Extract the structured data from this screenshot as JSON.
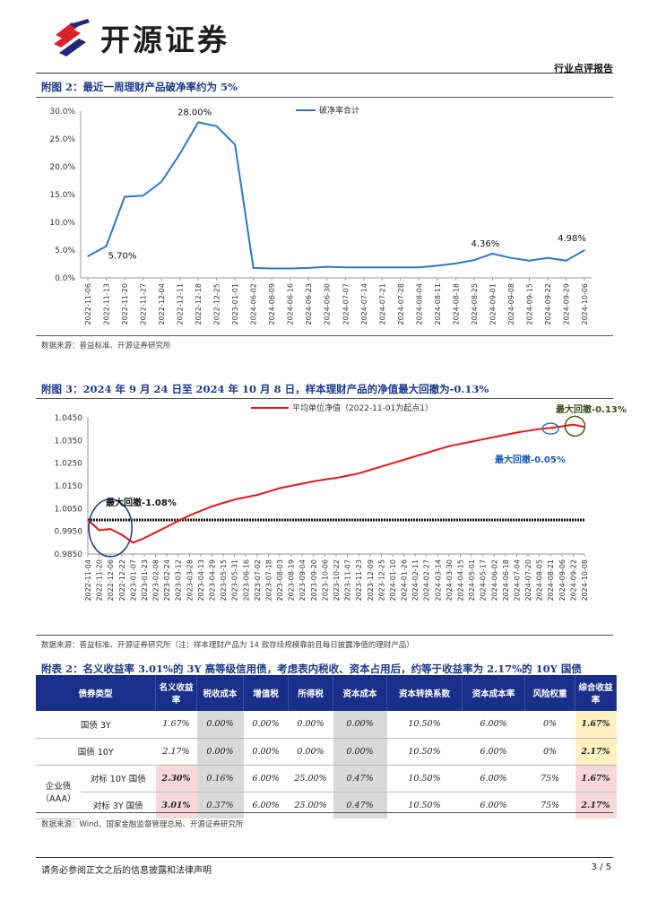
{
  "header": {
    "company_name": "开源证券",
    "report_type": "行业点评报告"
  },
  "figure2": {
    "title": "附图 2：最近一周理财产品破净率约为 5%",
    "source": "数据来源：普益标准、开源证券研究所",
    "chart_data": {
      "type": "line",
      "title": "附图 2：最近一周理财产品破净率约为 5%",
      "legend": "破净率合计",
      "ylim": [
        0,
        30
      ],
      "y_ticks": [
        "0.0%",
        "5.0%",
        "10.0%",
        "15.0%",
        "20.0%",
        "25.0%",
        "30.0%"
      ],
      "x": [
        "2022-11-06",
        "2022-11-13",
        "2022-11-20",
        "2022-11-27",
        "2022-12-04",
        "2022-12-11",
        "2022-12-18",
        "2022-12-25",
        "2023-01-01",
        "2024-06-02",
        "2024-06-09",
        "2024-06-16",
        "2024-06-23",
        "2024-06-30",
        "2024-07-07",
        "2024-07-14",
        "2024-07-21",
        "2024-07-28",
        "2024-08-04",
        "2024-08-11",
        "2024-08-18",
        "2024-08-25",
        "2024-09-01",
        "2024-09-08",
        "2024-09-15",
        "2024-09-22",
        "2024-09-29",
        "2024-10-06"
      ],
      "values": [
        3.9,
        5.7,
        14.6,
        14.8,
        17.3,
        22.3,
        28.0,
        27.3,
        24.0,
        1.8,
        1.7,
        1.7,
        1.8,
        2.0,
        1.9,
        1.9,
        1.9,
        1.9,
        1.9,
        2.2,
        2.6,
        3.2,
        4.36,
        3.6,
        3.1,
        3.6,
        3.1,
        4.98
      ],
      "annotations": [
        {
          "index": 1,
          "text": "5.70%"
        },
        {
          "index": 6,
          "text": "28.00%"
        },
        {
          "index": 22,
          "text": "4.36%"
        },
        {
          "index": 27,
          "text": "4.98%"
        }
      ]
    }
  },
  "figure3": {
    "title": "附图 3：2024 年 9 月 24 日至 2024 年 10 月 8 日，样本理财产品的净值最大回撤为-0.13%",
    "source": "数据来源：普益标准、开源证券研究所（注：样本理财产品为 14 款存续规模靠前且每日披露净值的理财产品）",
    "chart_data": {
      "type": "line",
      "legend": "平均单位净值（2022-11-01为起点1）",
      "ylim": [
        0.985,
        1.045
      ],
      "y_ticks": [
        "0.9850",
        "0.9950",
        "1.0050",
        "1.0150",
        "1.0250",
        "1.0350",
        "1.0450"
      ],
      "x_ticks": [
        "2022-11-04",
        "2022-11-20",
        "2022-12-06",
        "2022-12-22",
        "2023-01-07",
        "2023-01-23",
        "2023-02-08",
        "2023-02-24",
        "2023-03-12",
        "2023-03-28",
        "2023-04-13",
        "2023-04-29",
        "2023-05-15",
        "2023-05-31",
        "2023-06-16",
        "2023-07-02",
        "2023-07-18",
        "2023-08-03",
        "2023-08-19",
        "2023-09-04",
        "2023-09-20",
        "2023-10-06",
        "2023-10-22",
        "2023-11-07",
        "2023-11-23",
        "2023-12-09",
        "2023-12-25",
        "2024-01-10",
        "2024-01-26",
        "2024-02-11",
        "2024-02-27",
        "2024-03-14",
        "2024-03-30",
        "2024-04-15",
        "2024-05-01",
        "2024-05-17",
        "2024-06-02",
        "2024-06-18",
        "2024-07-04",
        "2024-07-20",
        "2024-08-05",
        "2024-08-21",
        "2024-09-06",
        "2024-09-22",
        "2024-10-08"
      ],
      "values": [
        1.0,
        0.9955,
        0.996,
        0.9935,
        0.99,
        0.992,
        0.9945,
        0.997,
        0.9995,
        1.002,
        1.004,
        1.006,
        1.0075,
        1.009,
        1.01,
        1.011,
        1.0125,
        1.014,
        1.015,
        1.016,
        1.017,
        1.0178,
        1.0185,
        1.0195,
        1.0205,
        1.022,
        1.0235,
        1.025,
        1.0265,
        1.028,
        1.0295,
        1.031,
        1.0325,
        1.0335,
        1.0345,
        1.0355,
        1.0365,
        1.0375,
        1.0385,
        1.0393,
        1.04,
        1.0405,
        1.0412,
        1.042,
        1.041
      ],
      "baseline": 1.0,
      "annotations": [
        {
          "text": "最大回撤-1.08%"
        },
        {
          "text": "最大回撤-0.05%"
        },
        {
          "text": "最大回撤-0.13%"
        }
      ]
    }
  },
  "table": {
    "title": "附表 2：名义收益率 3.01%的 3Y 高等级信用债，考虑表内税收、资本占用后，约等于收益率为 2.17%的 10Y 国债",
    "headers": [
      "债券类型",
      "名义收益率",
      "税收成本",
      "增值税",
      "所得税",
      "资本成本",
      "资本转换系数",
      "资本成本率",
      "风险权重",
      "综合收益率"
    ],
    "group_label": "企业债（AAA）",
    "rows": [
      {
        "label": "国债 3Y",
        "values": [
          "1.67%",
          "0.00%",
          "0.00%",
          "0.00%",
          "0.00%",
          "10.50%",
          "6.00%",
          "0%",
          "1.67%"
        ]
      },
      {
        "label": "国债 10Y",
        "values": [
          "2.17%",
          "0.00%",
          "0.00%",
          "0.00%",
          "0.00%",
          "10.50%",
          "6.00%",
          "0%",
          "2.17%"
        ]
      },
      {
        "label": "对标 10Y 国债",
        "values": [
          "2.30%",
          "0.16%",
          "6.00%",
          "25.00%",
          "0.47%",
          "10.50%",
          "6.00%",
          "75%",
          "1.67%"
        ]
      },
      {
        "label": "对标 3Y 国债",
        "values": [
          "3.01%",
          "0.37%",
          "6.00%",
          "25.00%",
          "0.47%",
          "10.50%",
          "6.00%",
          "75%",
          "2.17%"
        ]
      }
    ],
    "source": "数据来源：Wind、国家金融监督管理总局、开源证券研究所"
  },
  "footer": {
    "disclaimer": "请务必参阅正文之后的信息披露和法律声明",
    "page": "3 / 5"
  },
  "colors": {
    "accent_blue": "#1a2f8a",
    "line_blue": "#2e78c7",
    "line_red": "#e8161b",
    "logo_red": "#d8232a"
  }
}
